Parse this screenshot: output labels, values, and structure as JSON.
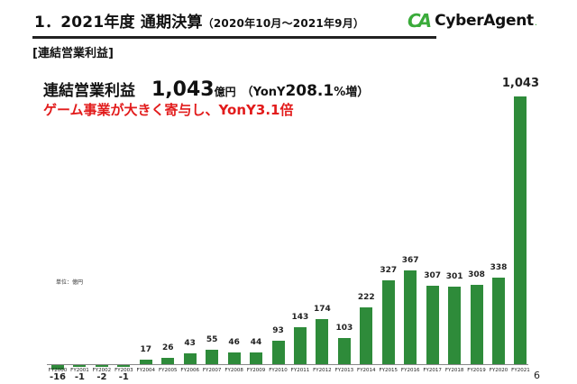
{
  "header": {
    "title_main": "1．2021年度 通期決算",
    "title_period": "（2020年10月～2021年9月）",
    "logo_mark": "CA",
    "logo_text": "CyberAgent",
    "logo_dot": "."
  },
  "section": {
    "label": "[連結営業利益]"
  },
  "kpi": {
    "label": "連結営業利益",
    "value": "1,043",
    "unit": "億円",
    "yoy_prefix": "（YonY",
    "yoy_value": "208.1",
    "yoy_suffix": "%増）"
  },
  "note": {
    "text": "ゲーム事業が大きく寄与し、YonY3.1倍"
  },
  "unit_label": "単位：億円",
  "page_number": "6",
  "colors": {
    "bar": "#2e8b3a",
    "accent_red": "#e21b1b",
    "logo_green": "#3aab3a"
  },
  "chart_data": {
    "type": "bar",
    "title": "連結営業利益",
    "xlabel": "",
    "ylabel": "億円",
    "categories": [
      "FY2000",
      "FY2001",
      "FY2002",
      "FY2003",
      "FY2004",
      "FY2005",
      "FY2006",
      "FY2007",
      "FY2008",
      "FY2009",
      "FY2010",
      "FY2011",
      "FY2012",
      "FY2013",
      "FY2014",
      "FY2015",
      "FY2016",
      "FY2017",
      "FY2018",
      "FY2019",
      "FY2020",
      "FY2021"
    ],
    "values": [
      -16,
      -1,
      -2,
      -1,
      17,
      26,
      43,
      55,
      46,
      44,
      93,
      143,
      174,
      103,
      222,
      327,
      367,
      307,
      301,
      308,
      338,
      1043
    ],
    "value_labels": [
      "-16",
      "-1",
      "-2",
      "-1",
      "17",
      "26",
      "43",
      "55",
      "46",
      "44",
      "93",
      "143",
      "174",
      "103",
      "222",
      "327",
      "367",
      "307",
      "301",
      "308",
      "338",
      "1,043"
    ],
    "ylim": [
      -16,
      1043
    ],
    "grid": false,
    "legend": null
  }
}
